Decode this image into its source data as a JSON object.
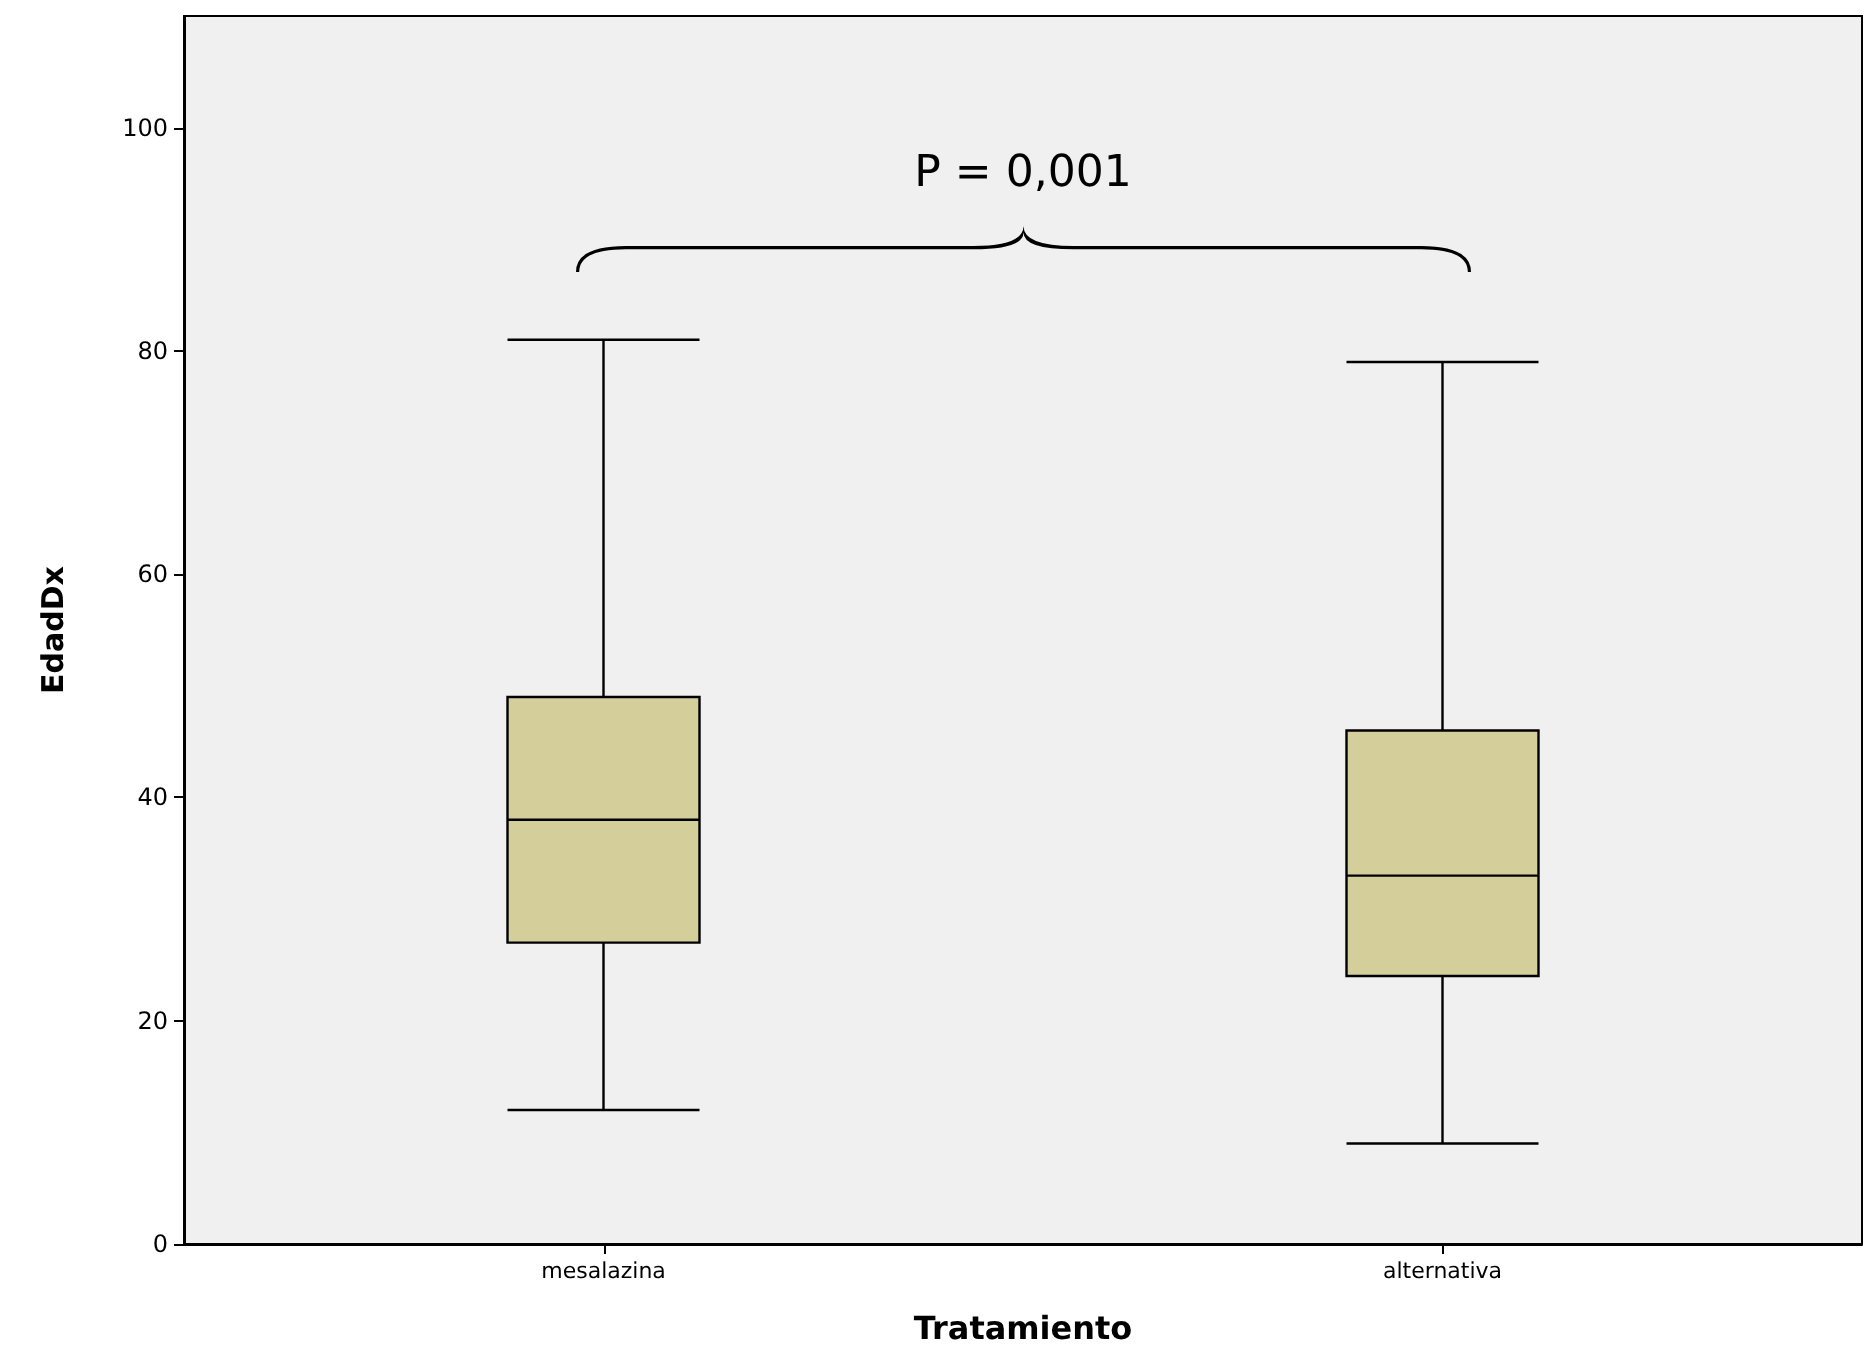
{
  "chart_data": {
    "type": "box",
    "xlabel": "Tratamiento",
    "ylabel": "EdadDx",
    "categories": [
      "mesalazina",
      "alternativa"
    ],
    "series": [
      {
        "color": "#d4cf9a",
        "boxes": [
          {
            "low": 12,
            "q1": 27,
            "median": 38,
            "q3": 49,
            "high": 81
          },
          {
            "low": 9,
            "q1": 24,
            "median": 33,
            "q3": 46,
            "high": 79
          }
        ]
      }
    ],
    "ylim": [
      0,
      110
    ],
    "yticks": [
      0,
      20,
      40,
      60,
      80,
      100
    ],
    "grid": false,
    "annotations": [
      "P = 0,001"
    ]
  }
}
